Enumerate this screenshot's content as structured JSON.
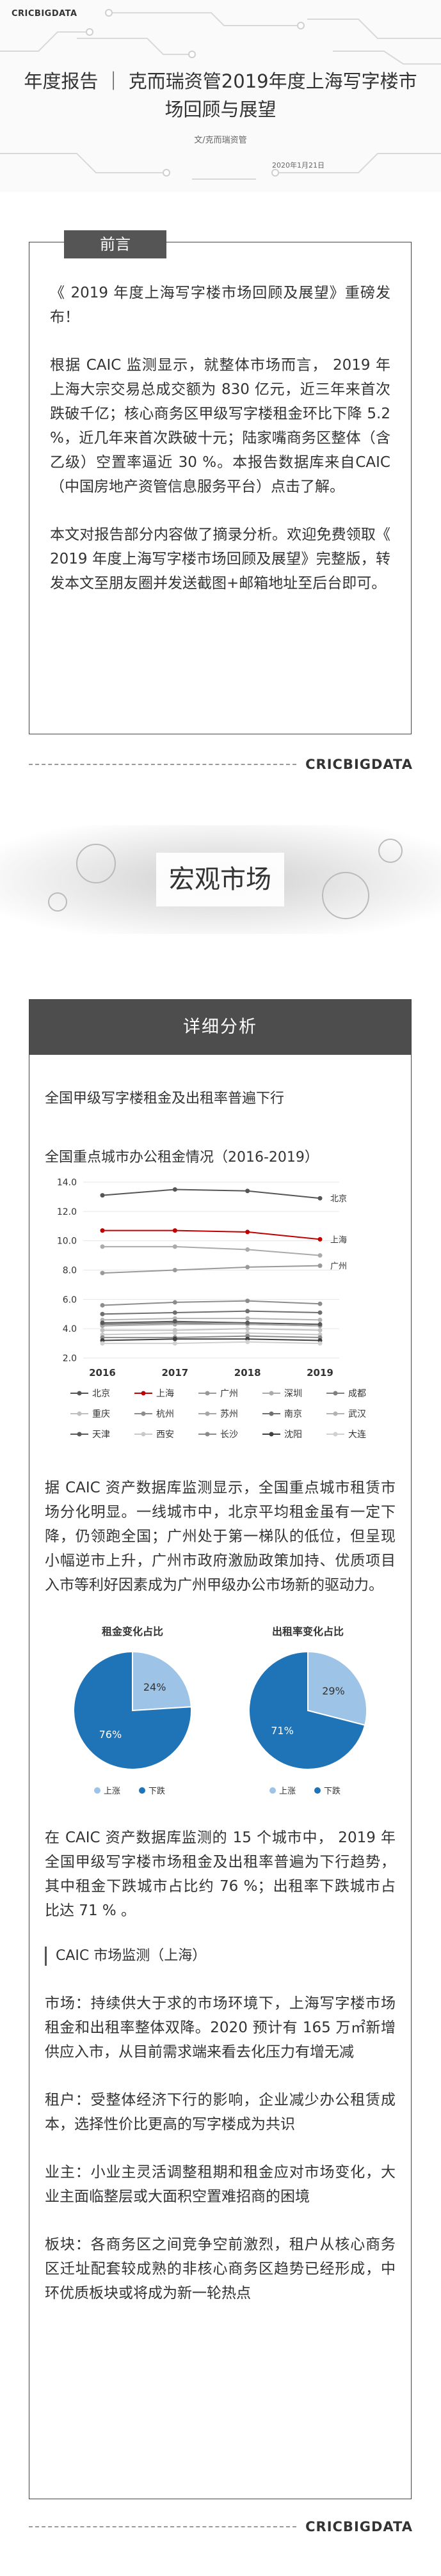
{
  "brand": "CRICBIGDATA",
  "header": {
    "title": "年度报告 ｜ 克而瑞资管2019年度上海写字楼市场回顾与展望",
    "author": "文/克而瑞资管",
    "date": "2020年1月21日"
  },
  "preface": {
    "tab": "前言",
    "paragraphs": [
      "《 2019 年度上海写字楼市场回顾及展望》重磅发布！",
      "根据 CAIC 监测显示，就整体市场而言， 2019 年上海大宗交易总成交额为 830 亿元，近三年来首次跌破千亿；核心商务区甲级写字楼租金环比下降 5.2 %，近几年来首次跌破十元；陆家嘴商务区整体（含乙级）空置率逼近 30 %。本报告数据库来自CAIC（中国房地产资管信息服务平台）点击了解。",
      "本文对报告部分内容做了摘录分析。欢迎免费领取《 2019 年度上海写字楼市场回顾及展望》完整版，转发本文至朋友圈并发送截图+邮箱地址至后台即可。"
    ]
  },
  "banner": "宏观市场",
  "analysis": {
    "tab": "详细分析",
    "heading": "全国甲级写字楼租金及出租率普遍下行",
    "paragraphs": [
      "据 CAIC 资产数据库监测显示，全国重点城市租赁市场分化明显。一线城市中，北京平均租金虽有一定下降，仍领跑全国；广州处于第一梯队的低位，但呈现小幅逆市上升，广州市政府激励政策加持、优质项目入市等利好因素成为广州甲级办公市场新的驱动力。",
      "在 CAIC 资产数据库监测的 15 个城市中， 2019 年全国甲级写字楼市场租金及出租率普遍为下行趋势，其中租金下跌城市占比约 76 %；出租率下跌城市占比达 71 % 。"
    ],
    "subheading": "CAIC 市场监测（上海）",
    "points": [
      "市场：持续供大于求的市场环境下，上海写字楼市场租金和出租率整体双降。2020 预计有 165 万㎡新增供应入市，从目前需求端来看去化压力有增无减",
      "租户：受整体经济下行的影响，企业减少办公租赁成本，选择性价比更高的写字楼成为共识",
      "业主：小业主灵活调整租期和租金应对市场变化，大业主面临整层或大面积空置难招商的困境",
      "板块：各商务区之间竞争空前激烈，租户从核心商务区迁址配套较成熟的非核心商务区趋势已经形成，中环优质板块或将成为新一轮热点"
    ]
  },
  "chart_data": [
    {
      "type": "line",
      "title": "全国重点城市办公租金情况（2016-2019）",
      "categories": [
        "2016",
        "2017",
        "2018",
        "2019"
      ],
      "ylim": [
        2,
        14
      ],
      "yticks": [
        {
          "value": 2,
          "label": "2.0"
        },
        {
          "value": 4,
          "label": "4.0"
        },
        {
          "value": 6,
          "label": "6.0"
        },
        {
          "value": 8,
          "label": "8.0"
        },
        {
          "value": 10,
          "label": "10.0"
        },
        {
          "value": 12,
          "label": "12.0"
        },
        {
          "value": 14,
          "label": "14.0"
        }
      ],
      "grid": true,
      "series": [
        {
          "name": "北京",
          "color": "#555555",
          "values": [
            13.1,
            13.5,
            13.4,
            12.9
          ],
          "label_end": true
        },
        {
          "name": "上海",
          "color": "#c00000",
          "values": [
            10.7,
            10.7,
            10.6,
            10.1
          ],
          "label_end": true
        },
        {
          "name": "广州",
          "color": "#999999",
          "values": [
            7.8,
            8.0,
            8.2,
            8.3
          ],
          "label_end": true
        },
        {
          "name": "深圳",
          "color": "#aaaaaa",
          "values": [
            9.6,
            9.6,
            9.4,
            9.0
          ]
        },
        {
          "name": "成都",
          "color": "#7f7f7f",
          "values": [
            4.3,
            4.4,
            4.3,
            4.2
          ]
        },
        {
          "name": "重庆",
          "color": "#bfbfbf",
          "values": [
            3.9,
            3.9,
            4.0,
            3.9
          ]
        },
        {
          "name": "杭州",
          "color": "#8c8c8c",
          "values": [
            5.6,
            5.8,
            5.9,
            5.7
          ]
        },
        {
          "name": "苏州",
          "color": "#a6a6a6",
          "values": [
            4.2,
            4.3,
            4.3,
            4.2
          ]
        },
        {
          "name": "南京",
          "color": "#6f6f6f",
          "values": [
            5.0,
            5.1,
            5.2,
            5.1
          ]
        },
        {
          "name": "武汉",
          "color": "#b3b3b3",
          "values": [
            4.6,
            4.7,
            4.7,
            4.6
          ]
        },
        {
          "name": "天津",
          "color": "#595959",
          "values": [
            4.4,
            4.5,
            4.4,
            4.3
          ]
        },
        {
          "name": "西安",
          "color": "#c9c9c9",
          "values": [
            3.6,
            3.7,
            3.7,
            3.6
          ]
        },
        {
          "name": "长沙",
          "color": "#8a8a8a",
          "values": [
            3.4,
            3.4,
            3.5,
            3.4
          ]
        },
        {
          "name": "沈阳",
          "color": "#404040",
          "values": [
            3.2,
            3.3,
            3.3,
            3.2
          ]
        },
        {
          "name": "大连",
          "color": "#d0d0d0",
          "values": [
            3.0,
            3.0,
            3.1,
            3.0
          ]
        }
      ]
    },
    {
      "type": "pie",
      "title": "租金变化占比",
      "categories": [
        "上涨",
        "下跌"
      ],
      "values": [
        24,
        76
      ],
      "value_labels": [
        "24%",
        "76%"
      ],
      "colors": [
        "#9dc3e6",
        "#1f73b7"
      ]
    },
    {
      "type": "pie",
      "title": "出租率变化占比",
      "categories": [
        "上涨",
        "下跌"
      ],
      "values": [
        29,
        71
      ],
      "value_labels": [
        "29%",
        "71%"
      ],
      "colors": [
        "#9dc3e6",
        "#1f73b7"
      ]
    }
  ]
}
